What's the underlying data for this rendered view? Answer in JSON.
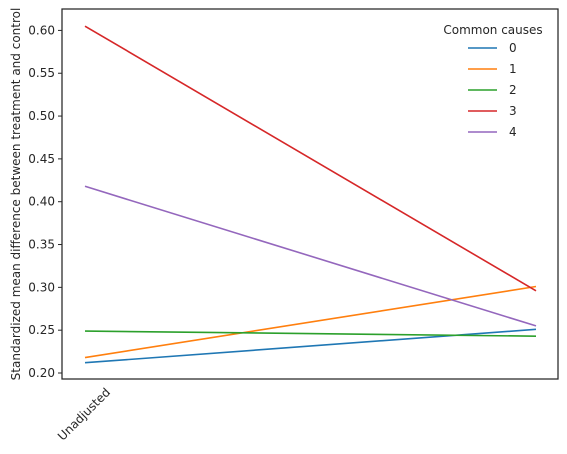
{
  "chart_data": {
    "type": "line",
    "x_labels": [
      "Unadjusted",
      ""
    ],
    "ylabel": "Standardized mean difference between treatment and control",
    "xlabel": "",
    "ylim": [
      0.193,
      0.625
    ],
    "yticks": [
      "0.20",
      "0.25",
      "0.30",
      "0.35",
      "0.40",
      "0.45",
      "0.50",
      "0.55",
      "0.60"
    ],
    "grid": false,
    "legend": {
      "title": "Common causes",
      "placement": "top-right"
    },
    "series": [
      {
        "name": "0",
        "color": "#1f77b4",
        "values": [
          0.212,
          0.251
        ]
      },
      {
        "name": "1",
        "color": "#ff7f0e",
        "values": [
          0.218,
          0.301
        ]
      },
      {
        "name": "2",
        "color": "#2ca02c",
        "values": [
          0.249,
          0.243
        ]
      },
      {
        "name": "3",
        "color": "#d62728",
        "values": [
          0.605,
          0.296
        ]
      },
      {
        "name": "4",
        "color": "#9467bd",
        "values": [
          0.418,
          0.255
        ]
      }
    ]
  }
}
